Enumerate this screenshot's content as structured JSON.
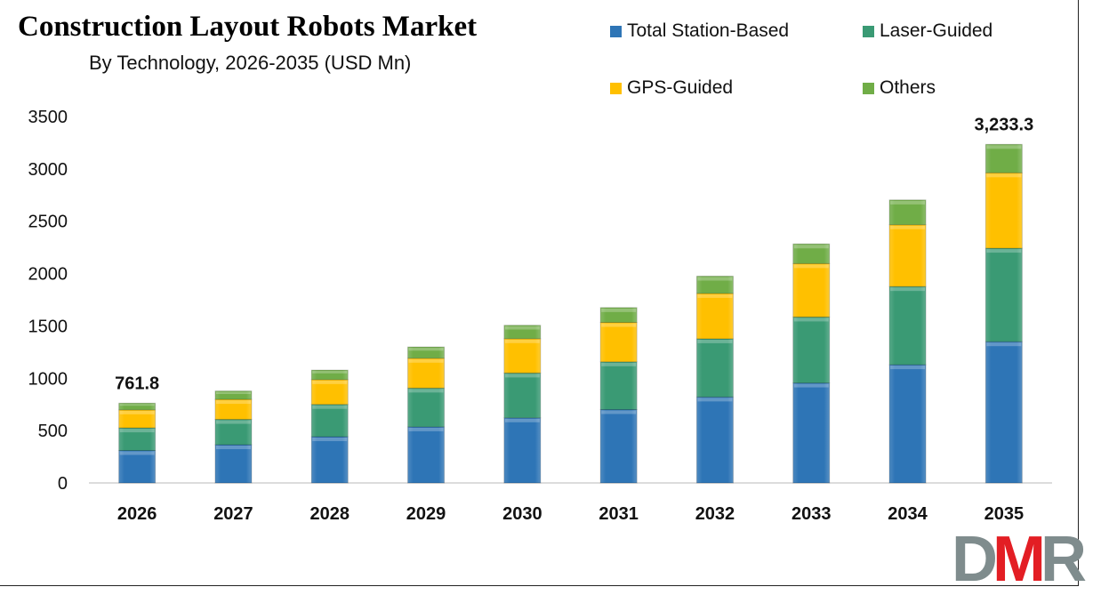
{
  "chart_data": {
    "type": "bar",
    "stacked": true,
    "title": "Construction Layout Robots Market",
    "subtitle": "By Technology, 2026-2035 (USD Mn)",
    "xlabel": "",
    "ylabel": "",
    "ylim": [
      0,
      3500
    ],
    "yticks": [
      0,
      500,
      1000,
      1500,
      2000,
      2500,
      3000,
      3500
    ],
    "grid": false,
    "legend_position": "top-right",
    "categories": [
      "2026",
      "2027",
      "2028",
      "2029",
      "2030",
      "2031",
      "2032",
      "2033",
      "2034",
      "2035"
    ],
    "series": [
      {
        "name": "Total Station-Based",
        "color": "#2E75B6",
        "values": [
          310,
          365,
          442,
          536,
          622,
          701,
          821,
          955,
          1129,
          1349
        ]
      },
      {
        "name": "Laser-Guided",
        "color": "#3A9A74",
        "values": [
          216,
          242,
          308,
          370,
          428,
          456,
          556,
          630,
          747,
          893
        ]
      },
      {
        "name": "GPS-Guided",
        "color": "#FFC000",
        "values": [
          172,
          191,
          237,
          285,
          328,
          376,
          433,
          510,
          590,
          720
        ]
      },
      {
        "name": "Others",
        "color": "#70AD47",
        "values": [
          64,
          80,
          91,
          108,
          128,
          142,
          165,
          188,
          237,
          272
        ]
      }
    ],
    "data_labels": [
      {
        "category": "2026",
        "text": "761.8"
      },
      {
        "category": "2035",
        "text": "3,233.3"
      }
    ]
  },
  "logo": {
    "text_d": "D",
    "text_m": "M",
    "text_r": "R",
    "grey": "#7F8C8D",
    "red": "#E31E24"
  }
}
